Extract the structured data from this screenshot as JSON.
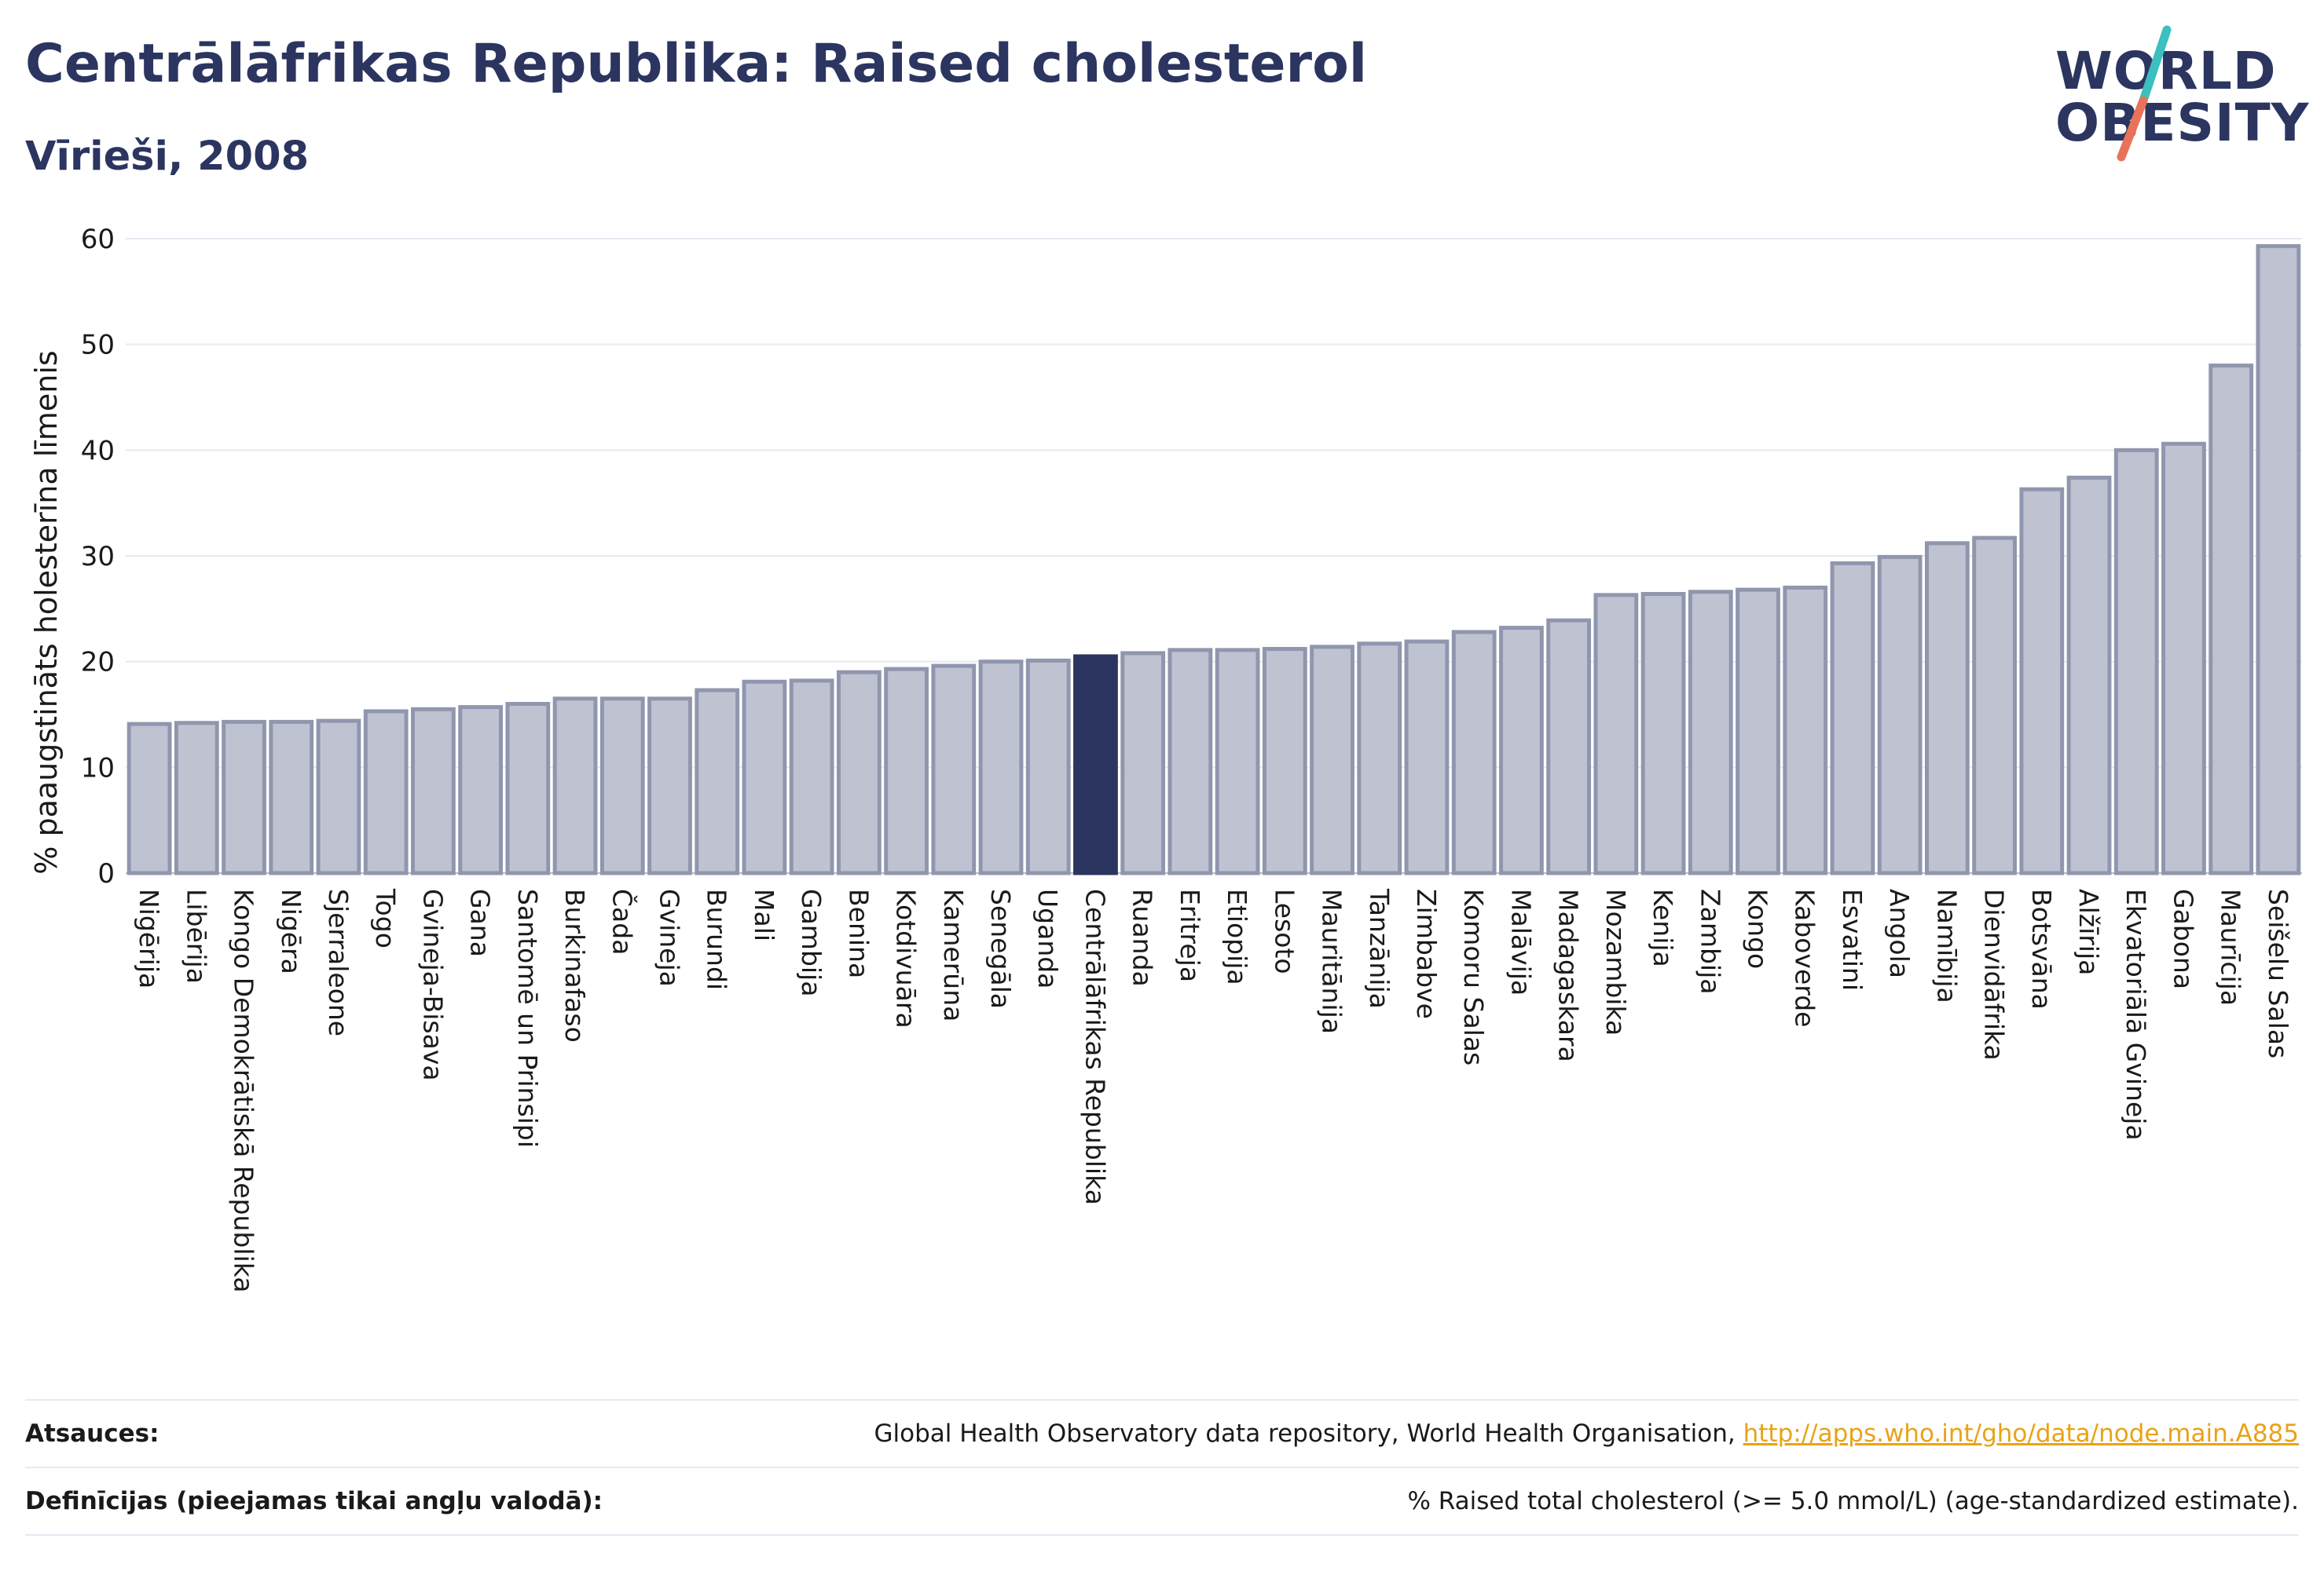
{
  "header": {
    "title": "Centrālāfrikas Republika: Raised cholesterol",
    "subtitle": "Vīrieši, 2008"
  },
  "logo": {
    "line1": "WORLD",
    "line2": "OBESITY",
    "slash_colors": [
      "#3cbfbf",
      "#e8735a"
    ]
  },
  "colors": {
    "bar": "#bfc2d1",
    "bar_stroke": "#9096ad",
    "highlight": "#2b3560",
    "grid": "#e6e9f2",
    "text": "#1a1a1a"
  },
  "chart_data": {
    "type": "bar",
    "ylabel": "% paaugstināts holesterīna līmenis",
    "ylim": [
      0,
      60
    ],
    "yticks": [
      0,
      10,
      20,
      30,
      40,
      50,
      60
    ],
    "grid": true,
    "highlight": "Centrālāfrikas Republika",
    "categories": [
      "Nigērija",
      "Libērija",
      "Kongo Demokrātiskā Republika",
      "Nigēra",
      "Sjerraleone",
      "Togo",
      "Gvineja-Bisava",
      "Gana",
      "Santomē un Prinsipi",
      "Burkinafaso",
      "Čada",
      "Gvineja",
      "Burundi",
      "Mali",
      "Gambija",
      "Benina",
      "Kotdivuāra",
      "Kamerūna",
      "Senegāla",
      "Uganda",
      "Centrālāfrikas Republika",
      "Ruanda",
      "Eritreja",
      "Etiopija",
      "Lesoto",
      "Mauritānija",
      "Tanzānija",
      "Zimbabve",
      "Komoru Salas",
      "Malāvija",
      "Madagaskara",
      "Mozambika",
      "Kenija",
      "Zambija",
      "Kongo",
      "Kaboverde",
      "Esvatini",
      "Angola",
      "Namībija",
      "Dienvidāfrika",
      "Botsvāna",
      "Alžīrija",
      "Ekvatoriālā Gvineja",
      "Gabona",
      "Maurīcija",
      "Seišelu Salas"
    ],
    "values": [
      14.1,
      14.2,
      14.3,
      14.3,
      14.4,
      15.3,
      15.5,
      15.7,
      16.0,
      16.5,
      16.5,
      16.5,
      17.3,
      18.1,
      18.2,
      19.0,
      19.3,
      19.6,
      20.0,
      20.1,
      20.5,
      20.8,
      21.1,
      21.1,
      21.2,
      21.4,
      21.7,
      21.9,
      22.8,
      23.2,
      23.9,
      26.3,
      26.4,
      26.6,
      26.8,
      27.0,
      29.3,
      29.9,
      31.2,
      31.7,
      36.3,
      37.4,
      40.0,
      40.6,
      48.0,
      59.3
    ]
  },
  "footer": {
    "sources_label": "Atsauces:",
    "sources_text": "Global Health Observatory data repository, World Health Organisation, ",
    "sources_link": "http://apps.who.int/gho/data/node.main.A885",
    "definitions_label": "Definīcijas (pieejamas tikai angļu valodā):",
    "definitions_text": "% Raised total cholesterol (>= 5.0 mmol/L) (age-standardized estimate)."
  }
}
